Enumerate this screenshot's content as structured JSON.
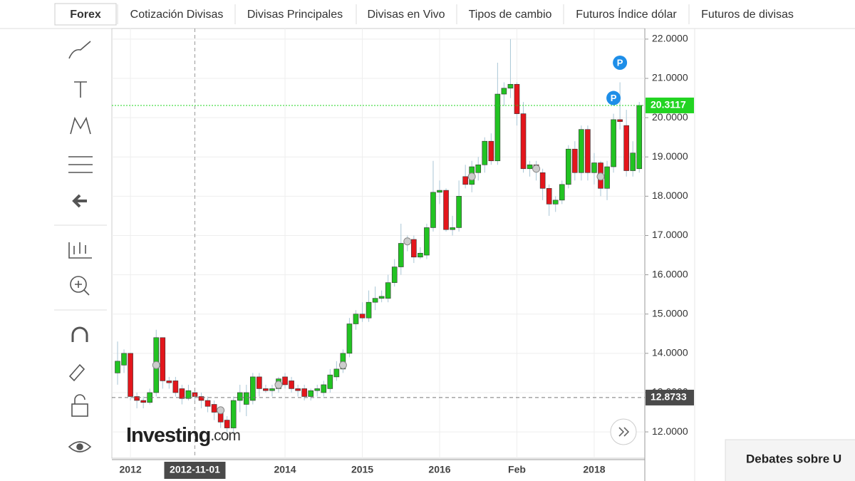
{
  "tabs": [
    "Forex",
    "Cotización Divisas",
    "Divisas Principales",
    "Divisas en Vivo",
    "Tipos de cambio",
    "Futuros Índice dólar",
    "Futuros de divisas"
  ],
  "logo": {
    "brand": "Investing",
    "suffix": ".com"
  },
  "footer_box": "Debates sobre U",
  "chart_data": {
    "type": "candlestick",
    "categories": [
      null,
      null,
      "2012",
      null,
      null,
      null,
      null,
      null,
      null,
      null,
      null,
      null,
      "2012-11-01",
      null,
      null,
      null,
      null,
      null,
      null,
      null,
      null,
      null,
      null,
      null,
      null,
      null,
      "2014",
      null,
      null,
      null,
      null,
      null,
      null,
      null,
      null,
      null,
      null,
      null,
      "2015",
      null,
      null,
      null,
      null,
      null,
      null,
      null,
      null,
      null,
      null,
      null,
      "2016",
      null,
      null,
      null,
      null,
      null,
      null,
      null,
      null,
      null,
      null,
      null,
      "Feb",
      null,
      null,
      null,
      null,
      null,
      null,
      null,
      null,
      null,
      null,
      null,
      "2018",
      null,
      null,
      null,
      null,
      null,
      null,
      null
    ],
    "open": [
      13.5,
      13.7,
      14.0,
      12.9,
      12.8,
      12.75,
      13.0,
      14.4,
      13.3,
      13.3,
      13.1,
      12.85,
      13.0,
      12.9,
      12.8,
      12.7,
      12.5,
      12.3,
      12.1,
      12.8,
      12.7,
      12.8,
      13.4,
      13.1,
      13.05,
      13.1,
      13.4,
      13.3,
      13.1,
      13.1,
      12.9,
      13.05,
      13.0,
      13.1,
      13.4,
      13.6,
      14.0,
      14.75,
      15.0,
      14.9,
      15.3,
      15.4,
      15.4,
      15.8,
      16.2,
      16.8,
      16.9,
      16.45,
      16.5,
      17.2,
      18.1,
      18.15,
      17.15,
      17.2,
      18.5,
      18.3,
      18.6,
      18.8,
      19.4,
      18.9,
      20.6,
      20.75,
      20.85,
      20.1,
      18.7,
      18.8,
      18.6,
      18.2,
      17.8,
      17.9,
      18.3,
      19.2,
      18.6,
      19.7,
      18.6,
      18.85,
      18.2,
      18.75,
      19.95,
      19.8,
      18.65,
      18.7
    ],
    "high": [
      14.3,
      14.1,
      14.0,
      13.0,
      12.9,
      13.1,
      14.6,
      14.4,
      13.4,
      13.4,
      13.2,
      13.2,
      13.1,
      13.0,
      12.9,
      12.8,
      12.6,
      12.4,
      12.9,
      13.2,
      13.2,
      13.5,
      13.5,
      13.2,
      13.2,
      13.4,
      13.5,
      13.4,
      13.2,
      13.2,
      13.1,
      13.2,
      13.3,
      13.6,
      13.8,
      14.1,
      14.9,
      15.1,
      15.3,
      15.6,
      15.7,
      15.6,
      16.0,
      16.4,
      17.3,
      17.0,
      17.0,
      16.7,
      17.3,
      18.9,
      18.4,
      18.2,
      17.5,
      18.4,
      18.8,
      18.9,
      19.0,
      19.5,
      19.6,
      21.4,
      20.9,
      22.0,
      20.9,
      20.4,
      18.9,
      18.9,
      18.7,
      18.3,
      18.0,
      18.4,
      19.3,
      19.4,
      19.8,
      19.8,
      19.1,
      18.9,
      18.9,
      20.1,
      20.9,
      20.2,
      19.4,
      20.4
    ],
    "low": [
      13.2,
      13.5,
      12.8,
      12.6,
      12.6,
      12.7,
      12.9,
      13.1,
      13.1,
      12.9,
      12.7,
      12.8,
      12.8,
      12.6,
      12.5,
      12.3,
      12.1,
      12.0,
      12.0,
      12.5,
      12.4,
      12.7,
      12.9,
      13.0,
      12.9,
      13.0,
      13.1,
      13.0,
      12.9,
      12.8,
      12.8,
      12.9,
      12.9,
      13.0,
      13.3,
      13.5,
      13.9,
      14.6,
      14.8,
      14.8,
      15.1,
      15.3,
      15.3,
      15.7,
      16.0,
      16.6,
      16.3,
      16.4,
      16.4,
      17.1,
      17.8,
      17.1,
      17.0,
      17.1,
      18.2,
      18.1,
      18.4,
      18.6,
      18.8,
      18.8,
      20.3,
      20.5,
      19.8,
      18.6,
      18.5,
      18.4,
      17.9,
      17.5,
      17.6,
      17.8,
      18.2,
      18.4,
      18.4,
      18.4,
      18.3,
      18.0,
      17.9,
      18.6,
      19.7,
      18.5,
      18.5,
      18.6
    ],
    "close": [
      13.8,
      14.0,
      12.9,
      12.8,
      12.75,
      13.0,
      14.4,
      13.3,
      13.25,
      13.0,
      12.85,
      13.05,
      12.9,
      12.8,
      12.65,
      12.5,
      12.25,
      12.1,
      12.8,
      13.0,
      13.0,
      13.4,
      13.1,
      13.05,
      13.1,
      13.35,
      13.2,
      13.1,
      13.05,
      12.9,
      13.05,
      13.1,
      13.2,
      13.45,
      13.6,
      14.0,
      14.75,
      15.0,
      14.9,
      15.3,
      15.4,
      15.45,
      15.8,
      16.2,
      16.8,
      16.9,
      16.45,
      16.55,
      17.2,
      18.1,
      18.15,
      17.15,
      17.2,
      18.0,
      18.3,
      18.75,
      18.8,
      19.4,
      18.9,
      20.6,
      20.75,
      20.85,
      20.1,
      18.7,
      18.8,
      18.65,
      18.2,
      17.8,
      17.9,
      18.3,
      19.2,
      18.6,
      19.7,
      18.6,
      18.85,
      18.2,
      18.75,
      19.95,
      19.9,
      18.65,
      19.1,
      20.3117
    ],
    "up_color": "#22c322",
    "down_color": "#e3161c",
    "wick_color": "#a9c6d6",
    "ylim": [
      11.33,
      22.27
    ],
    "yticks": [
      {
        "value": 12,
        "label": "12.0000"
      },
      {
        "value": 13,
        "label": "13.0000"
      },
      {
        "value": 14,
        "label": "14.0000"
      },
      {
        "value": 15,
        "label": "15.0000"
      },
      {
        "value": 16,
        "label": "16.0000"
      },
      {
        "value": 17,
        "label": "17.0000"
      },
      {
        "value": 18,
        "label": "18.0000"
      },
      {
        "value": 19,
        "label": "19.0000"
      },
      {
        "value": 20,
        "label": "20.0000"
      },
      {
        "value": 21,
        "label": "21.0000"
      },
      {
        "value": 22,
        "label": "22.0000"
      }
    ],
    "grid": true,
    "last_price": 20.3117,
    "crosshair": {
      "index": 12,
      "y": 12.8733
    },
    "event_markers": [
      {
        "index": 6,
        "value": 13.7
      },
      {
        "index": 16,
        "value": 12.55
      },
      {
        "index": 25,
        "value": 13.2
      },
      {
        "index": 35,
        "value": 13.7
      },
      {
        "index": 45,
        "value": 16.85
      },
      {
        "index": 55,
        "value": 18.5
      },
      {
        "index": 65,
        "value": 18.7
      },
      {
        "index": 75,
        "value": 18.5
      }
    ],
    "badges": [
      {
        "index": 78,
        "value": 21.4,
        "label": "P"
      },
      {
        "index": 77,
        "value": 20.5,
        "label": "P"
      }
    ]
  }
}
